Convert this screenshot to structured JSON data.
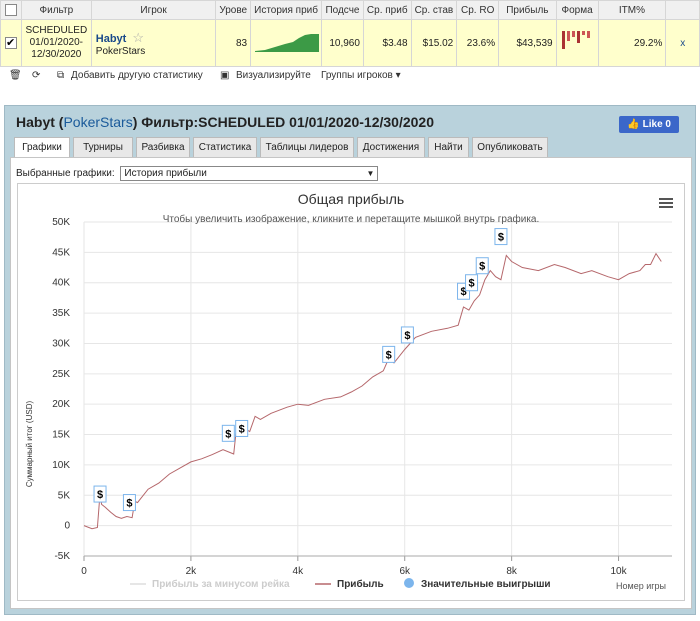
{
  "table": {
    "headers": [
      "Фильтр",
      "Игрок",
      "Урове",
      "История приб",
      "Подсче",
      "Ср. приб",
      "Ср. став",
      "Ср. RO",
      "Прибыль",
      "Форма",
      "ITM%"
    ],
    "row": {
      "filter": [
        "SCHEDULED",
        "01/01/2020-",
        "12/30/2020"
      ],
      "player": "Habyt",
      "site": "PokerStars",
      "level": "83",
      "count": "10,960",
      "avg_profit": "$3.48",
      "avg_stake": "$15.02",
      "avg_roi": "23.6%",
      "profit": "$43,539",
      "itm": "29.2%",
      "remove": "x"
    }
  },
  "toolbar": {
    "add": "Добавить другую статистику",
    "visualize": "Визуализируйте",
    "groups": "Группы игроков ▾"
  },
  "panel": {
    "player": "Habyt",
    "site": "PokerStars",
    "filter_title": "Фильтр:SCHEDULED 01/01/2020-12/30/2020",
    "like": "Like 0",
    "tabs": [
      "Графики",
      "Турниры",
      "Разбивка",
      "Статистика",
      "Таблицы лидеров",
      "Достижения",
      "Найти",
      "Опубликовать"
    ],
    "select_label": "Выбранные графики:",
    "select_value": "История прибыли"
  },
  "chart_data": {
    "type": "line",
    "title": "Общая прибыль",
    "subtitle": "Чтобы увеличить изображение, кликните и перетащите мышкой внутрь графика.",
    "ylabel": "Суммарный итог (USD)",
    "xlabel": "Номер игры",
    "xlim": [
      0,
      11000
    ],
    "ylim": [
      -5000,
      50000
    ],
    "x_ticks": [
      "0",
      "2k",
      "4k",
      "6k",
      "8k",
      "10k"
    ],
    "y_ticks": [
      "-5K",
      "0",
      "5K",
      "10K",
      "15K",
      "20K",
      "25K",
      "30K",
      "35K",
      "40K",
      "45K",
      "50K"
    ],
    "series": [
      {
        "name": "Прибыль за минусом рейка",
        "color": "#cccccc",
        "hidden": true
      },
      {
        "name": "Прибыль",
        "color": "#b5676b",
        "x": [
          0,
          150,
          250,
          300,
          330,
          400,
          500,
          600,
          700,
          800,
          900,
          950,
          1000,
          1200,
          1400,
          1600,
          1800,
          2000,
          2200,
          2400,
          2600,
          2800,
          2850,
          3000,
          3100,
          3200,
          3300,
          3500,
          3800,
          4000,
          4200,
          4500,
          4800,
          5000,
          5200,
          5400,
          5600,
          5700,
          5800,
          6000,
          6100,
          6200,
          6500,
          6800,
          7000,
          7100,
          7200,
          7300,
          7400,
          7500,
          7600,
          7700,
          7800,
          7900,
          8000,
          8200,
          8500,
          8800,
          9000,
          9300,
          9500,
          9800,
          10000,
          10200,
          10400,
          10500,
          10600,
          10700,
          10800
        ],
        "y": [
          0,
          -500,
          -300,
          5200,
          3500,
          3000,
          2200,
          1500,
          1200,
          1500,
          1300,
          4000,
          3800,
          6000,
          7000,
          8500,
          9500,
          10500,
          11000,
          11700,
          12500,
          11800,
          15800,
          16000,
          15500,
          18000,
          17500,
          18500,
          19500,
          20000,
          19800,
          20800,
          21200,
          22000,
          23000,
          24500,
          25500,
          27500,
          26800,
          29000,
          30000,
          31000,
          32000,
          32500,
          33000,
          36000,
          35500,
          37000,
          38000,
          40500,
          42000,
          41000,
          40500,
          44500,
          43500,
          42500,
          42000,
          43000,
          42500,
          41500,
          42000,
          41000,
          40500,
          41500,
          42000,
          43000,
          43000,
          44800,
          43500
        ]
      },
      {
        "name": "Значительные выигрыши",
        "color": "#7cb5ec",
        "type": "markers",
        "marker_label": "$",
        "x": [
          300,
          850,
          2700,
          2950,
          5700,
          6050,
          7100,
          7250,
          7450,
          7800
        ],
        "y": [
          5200,
          3800,
          15200,
          16000,
          28200,
          31400,
          38600,
          40000,
          42800,
          47600
        ]
      }
    ]
  }
}
